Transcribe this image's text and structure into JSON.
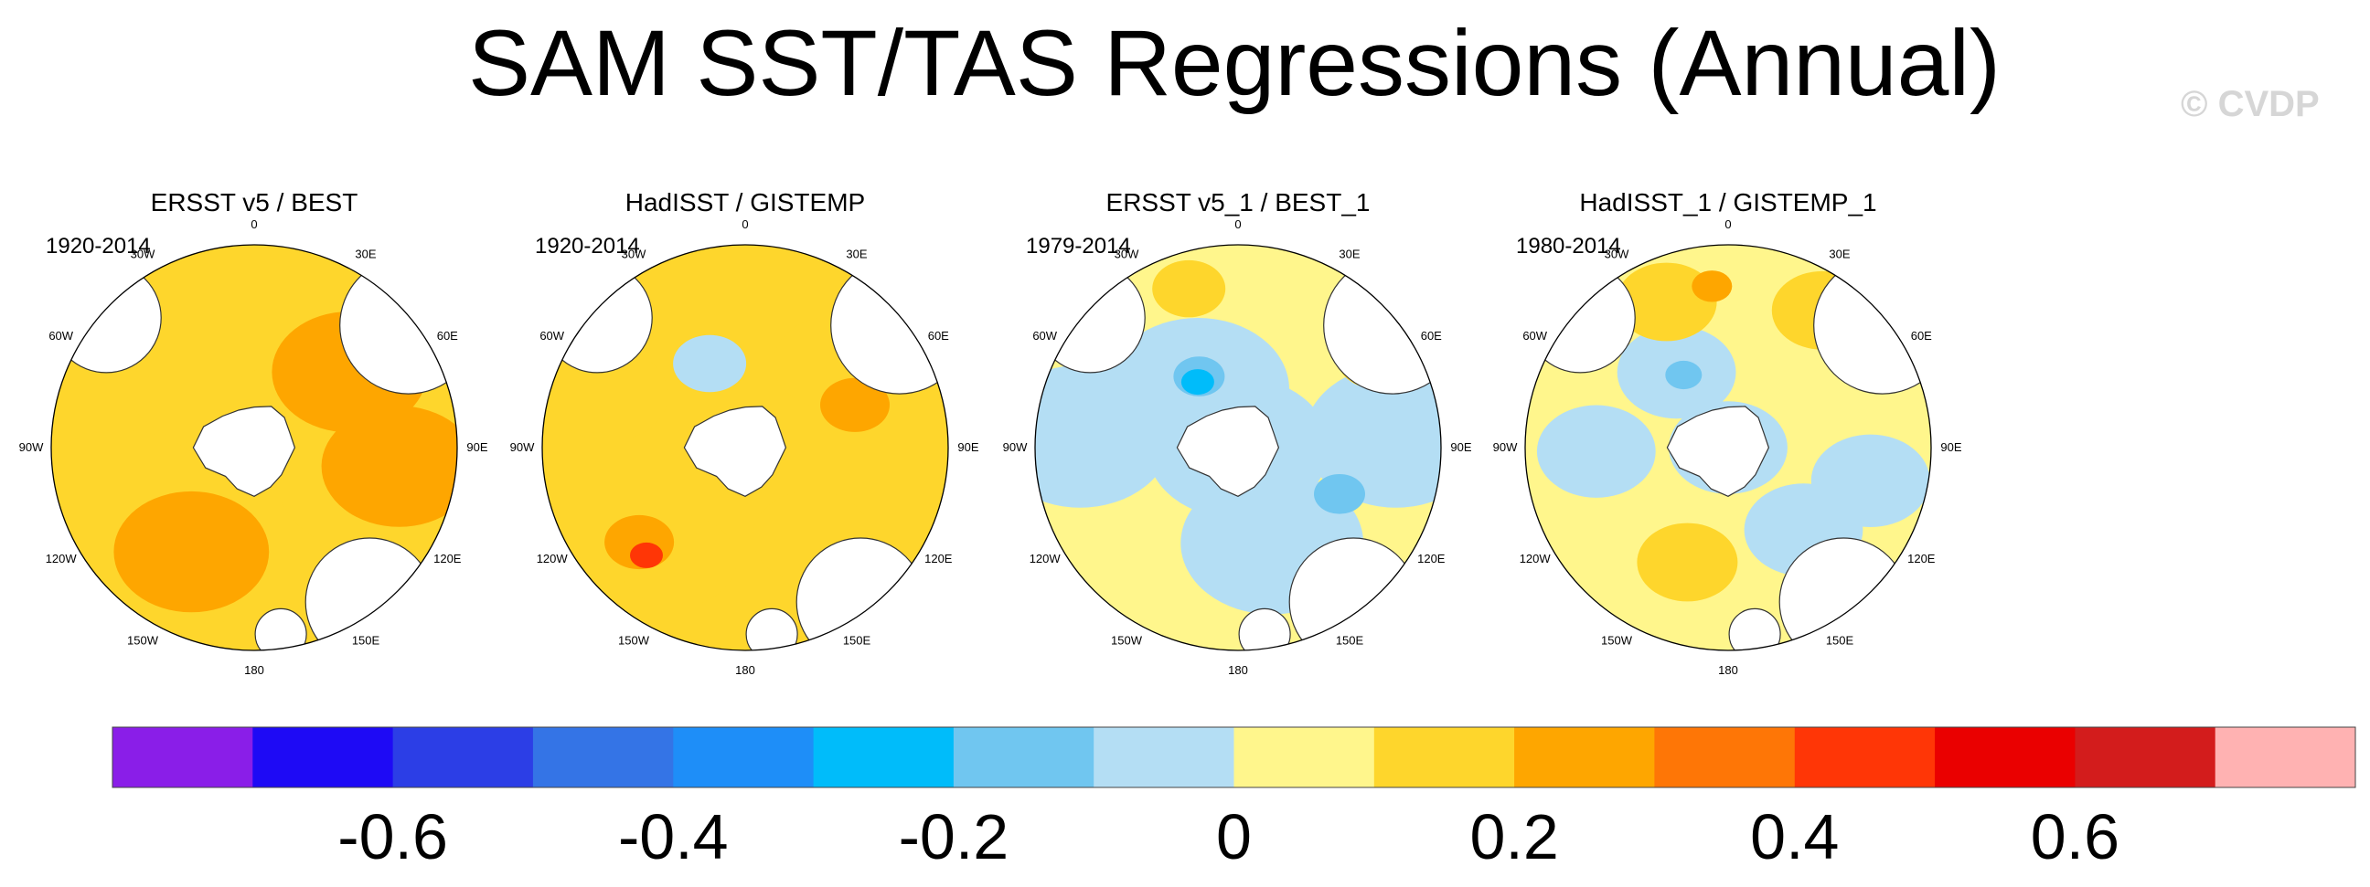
{
  "title": "SAM SST/TAS Regressions (Annual)",
  "watermark": "© CVDP",
  "longitude_labels": [
    "0",
    "30E",
    "60E",
    "90E",
    "120E",
    "150E",
    "180",
    "150W",
    "120W",
    "90W",
    "60W",
    "30W"
  ],
  "chart_data": {
    "type": "heatmap",
    "projection": "south-polar-stereographic",
    "variable": "SAM SST/TAS regression (annual)",
    "panels": [
      {
        "title": "ERSST v5 / BEST",
        "period": "1920-2014",
        "fields": [
          {
            "level": 0.15,
            "points": [
              [
                -3.2,
                0.5
              ],
              [
                0.6,
                0.42
              ],
              [
                -0.4,
                0.42
              ],
              [
                -0.4,
                0.75
              ],
              [
                1.8,
                0.62
              ],
              [
                -2.0,
                0.72
              ]
            ],
            "strength": 1.0
          },
          {
            "level": 0.25,
            "points": [
              [
                0.9,
                0.6
              ],
              [
                -2.6,
                0.6
              ],
              [
                1.7,
                0.72
              ]
            ],
            "strength": 0.75
          },
          {
            "level": -0.05,
            "points": [
              [
                0.0,
                0.0
              ]
            ],
            "strength": 0.18
          }
        ]
      },
      {
        "title": "HadISST / GISTEMP",
        "period": "1920-2014",
        "fields": [
          {
            "level": 0.15,
            "points": [
              [
                -2.6,
                0.65
              ],
              [
                0.8,
                0.6
              ],
              [
                2.5,
                0.55
              ],
              [
                -1.2,
                0.72
              ]
            ],
            "strength": 0.55
          },
          {
            "level": 0.25,
            "points": [
              [
                -2.3,
                0.7
              ],
              [
                1.2,
                0.58
              ]
            ],
            "strength": 0.28
          },
          {
            "level": 0.45,
            "points": [
              [
                -2.4,
                0.72
              ]
            ],
            "strength": 0.08
          },
          {
            "level": -0.05,
            "points": [
              [
                0.0,
                0.0
              ],
              [
                -0.4,
                0.45
              ]
            ],
            "strength": 0.3
          }
        ]
      },
      {
        "title": "ERSST v5_1 / BEST_1",
        "period": "1979-2014",
        "fields": [
          {
            "level": -0.05,
            "points": [
              [
                -1.5,
                0.78
              ],
              [
                1.5,
                0.78
              ],
              [
                -0.6,
                0.35
              ],
              [
                2.8,
                0.5
              ],
              [
                0.0,
                0.0
              ]
            ],
            "strength": 0.9
          },
          {
            "level": -0.15,
            "points": [
              [
                -0.5,
                0.4
              ],
              [
                2.0,
                0.55
              ]
            ],
            "strength": 0.18
          },
          {
            "level": -0.25,
            "points": [
              [
                -0.55,
                0.38
              ]
            ],
            "strength": 0.08
          },
          {
            "level": 0.15,
            "points": [
              [
                -0.3,
                0.82
              ],
              [
                1.0,
                0.8
              ]
            ],
            "strength": 0.3
          }
        ]
      },
      {
        "title": "HadISST_1 / GISTEMP_1",
        "period": "1980-2014",
        "fields": [
          {
            "level": -0.05,
            "points": [
              [
                -1.6,
                0.65
              ],
              [
                1.8,
                0.72
              ],
              [
                2.4,
                0.55
              ],
              [
                0.0,
                0.0
              ],
              [
                -0.6,
                0.45
              ]
            ],
            "strength": 0.55
          },
          {
            "level": -0.15,
            "points": [
              [
                -0.55,
                0.42
              ]
            ],
            "strength": 0.1
          },
          {
            "level": 0.15,
            "points": [
              [
                -0.4,
                0.78
              ],
              [
                0.6,
                0.82
              ],
              [
                -2.8,
                0.6
              ]
            ],
            "strength": 0.45
          },
          {
            "level": 0.25,
            "points": [
              [
                -0.1,
                0.8
              ]
            ],
            "strength": 0.12
          }
        ]
      }
    ],
    "colorbar": {
      "levels": [
        -0.7,
        -0.6,
        -0.5,
        -0.4,
        -0.3,
        -0.2,
        -0.1,
        0,
        0.1,
        0.2,
        0.3,
        0.4,
        0.5,
        0.6,
        0.7
      ],
      "colors": [
        "#8a1ee8",
        "#1e0af5",
        "#2c3ee6",
        "#3474e6",
        "#1e8ef8",
        "#00bcfa",
        "#70c6f0",
        "#b4def4",
        "#fff68c",
        "#fed62c",
        "#fea600",
        "#fe7606",
        "#ff3606",
        "#ea0000",
        "#d31c1c",
        "#ffb2b2"
      ],
      "tick_labels": [
        "-0.6",
        "-0.4",
        "-0.2",
        "0",
        "0.2",
        "0.4",
        "0.6"
      ],
      "tick_values": [
        -0.6,
        -0.4,
        -0.2,
        0,
        0.2,
        0.4,
        0.6
      ]
    }
  }
}
